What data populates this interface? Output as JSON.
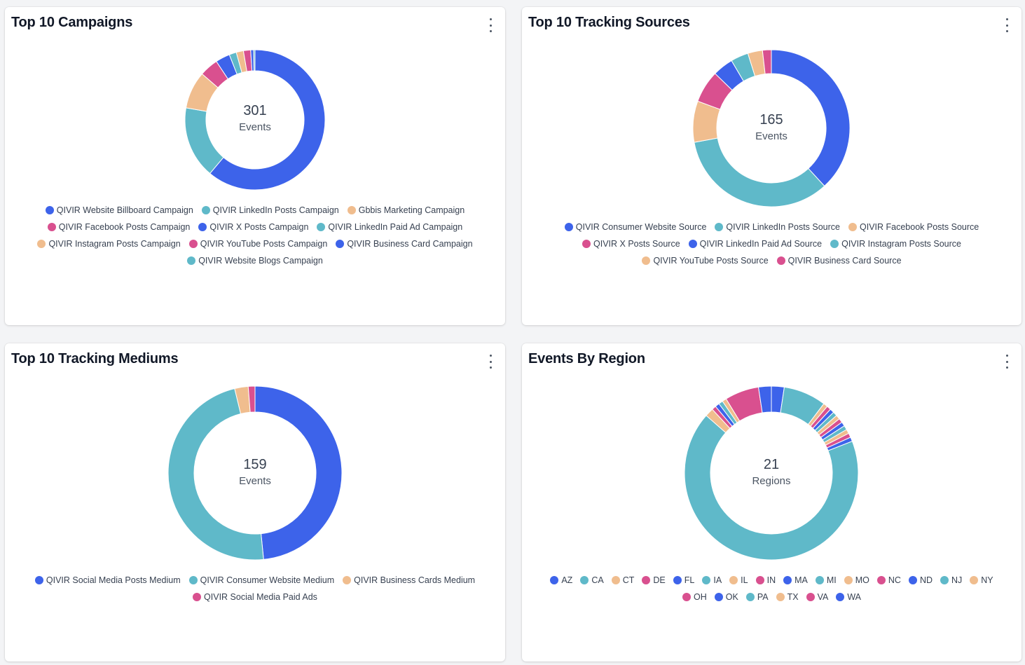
{
  "colors": {
    "blue": "#3d63ea",
    "teal": "#5fb9c9",
    "peach": "#f0bd8e",
    "pink": "#d9508f"
  },
  "cards": [
    {
      "id": "campaigns",
      "title": "Top 10 Campaigns",
      "center_value": "301",
      "center_label": "Events",
      "legend": [
        {
          "label": "QIVIR Website Billboard Campaign",
          "color": "#3d63ea"
        },
        {
          "label": "QIVIR LinkedIn Posts Campaign",
          "color": "#5fb9c9"
        },
        {
          "label": "Gbbis Marketing Campaign",
          "color": "#f0bd8e"
        },
        {
          "label": "QIVIR Facebook Posts Campaign",
          "color": "#d9508f"
        },
        {
          "label": "QIVIR X Posts Campaign",
          "color": "#3d63ea"
        },
        {
          "label": "QIVIR LinkedIn Paid Ad Campaign",
          "color": "#5fb9c9"
        },
        {
          "label": "QIVIR Instagram Posts Campaign",
          "color": "#f0bd8e"
        },
        {
          "label": "QIVIR YouTube Posts Campaign",
          "color": "#d9508f"
        },
        {
          "label": "QIVIR Business Card Campaign",
          "color": "#3d63ea"
        },
        {
          "label": "QIVIR Website Blogs Campaign",
          "color": "#5fb9c9"
        }
      ]
    },
    {
      "id": "sources",
      "title": "Top 10 Tracking Sources",
      "center_value": "165",
      "center_label": "Events",
      "legend": [
        {
          "label": "QIVIR Consumer Website Source",
          "color": "#3d63ea"
        },
        {
          "label": "QIVIR LinkedIn Posts Source",
          "color": "#5fb9c9"
        },
        {
          "label": "QIVIR Facebook Posts Source",
          "color": "#f0bd8e"
        },
        {
          "label": "QIVIR X Posts Source",
          "color": "#d9508f"
        },
        {
          "label": "QIVIR LinkedIn Paid Ad Source",
          "color": "#3d63ea"
        },
        {
          "label": "QIVIR Instagram Posts Source",
          "color": "#5fb9c9"
        },
        {
          "label": "QIVIR YouTube Posts Source",
          "color": "#f0bd8e"
        },
        {
          "label": "QIVIR Business Card Source",
          "color": "#d9508f"
        }
      ]
    },
    {
      "id": "mediums",
      "title": "Top 10 Tracking Mediums",
      "center_value": "159",
      "center_label": "Events",
      "legend": [
        {
          "label": "QIVIR Social Media Posts Medium",
          "color": "#3d63ea"
        },
        {
          "label": "QIVIR Consumer Website Medium",
          "color": "#5fb9c9"
        },
        {
          "label": "QIVIR Business Cards Medium",
          "color": "#f0bd8e"
        },
        {
          "label": "QIVIR Social Media Paid Ads",
          "color": "#d9508f"
        }
      ]
    },
    {
      "id": "regions",
      "title": "Events By Region",
      "center_value": "21",
      "center_label": "Regions",
      "legend": [
        {
          "label": "AZ",
          "color": "#3d63ea"
        },
        {
          "label": "CA",
          "color": "#5fb9c9"
        },
        {
          "label": "CT",
          "color": "#f0bd8e"
        },
        {
          "label": "DE",
          "color": "#d9508f"
        },
        {
          "label": "FL",
          "color": "#3d63ea"
        },
        {
          "label": "IA",
          "color": "#5fb9c9"
        },
        {
          "label": "IL",
          "color": "#f0bd8e"
        },
        {
          "label": "IN",
          "color": "#d9508f"
        },
        {
          "label": "MA",
          "color": "#3d63ea"
        },
        {
          "label": "MI",
          "color": "#5fb9c9"
        },
        {
          "label": "MO",
          "color": "#f0bd8e"
        },
        {
          "label": "NC",
          "color": "#d9508f"
        },
        {
          "label": "ND",
          "color": "#3d63ea"
        },
        {
          "label": "NJ",
          "color": "#5fb9c9"
        },
        {
          "label": "NY",
          "color": "#f0bd8e"
        },
        {
          "label": "OH",
          "color": "#d9508f"
        },
        {
          "label": "OK",
          "color": "#3d63ea"
        },
        {
          "label": "PA",
          "color": "#5fb9c9"
        },
        {
          "label": "TX",
          "color": "#f0bd8e"
        },
        {
          "label": "VA",
          "color": "#d9508f"
        },
        {
          "label": "WA",
          "color": "#3d63ea"
        }
      ]
    }
  ],
  "chart_data": [
    {
      "type": "pie",
      "title": "Top 10 Campaigns",
      "total": 301,
      "categories": [
        "QIVIR Website Billboard Campaign",
        "QIVIR LinkedIn Posts Campaign",
        "Gbbis Marketing Campaign",
        "QIVIR Facebook Posts Campaign",
        "QIVIR X Posts Campaign",
        "QIVIR LinkedIn Paid Ad Campaign",
        "QIVIR Instagram Posts Campaign",
        "QIVIR YouTube Posts Campaign",
        "QIVIR Business Card Campaign",
        "QIVIR Website Blogs Campaign"
      ],
      "values": [
        184,
        50,
        26,
        13,
        10,
        5,
        5,
        5,
        2,
        1
      ]
    },
    {
      "type": "pie",
      "title": "Top 10 Tracking Sources",
      "total": 165,
      "categories": [
        "QIVIR Consumer Website Source",
        "QIVIR LinkedIn Posts Source",
        "QIVIR Facebook Posts Source",
        "QIVIR X Posts Source",
        "QIVIR LinkedIn Paid Ad Source",
        "QIVIR Instagram Posts Source",
        "QIVIR YouTube Posts Source",
        "QIVIR Business Card Source"
      ],
      "values": [
        63,
        56,
        14,
        11,
        7,
        6,
        5,
        3
      ]
    },
    {
      "type": "pie",
      "title": "Top 10 Tracking Mediums",
      "total": 159,
      "categories": [
        "QIVIR Social Media Posts Medium",
        "QIVIR Consumer Website Medium",
        "QIVIR Business Cards Medium",
        "QIVIR Social Media Paid Ads"
      ],
      "values": [
        77,
        76,
        4,
        2
      ]
    },
    {
      "type": "pie",
      "title": "Events By Region",
      "total_label": "21 Regions",
      "categories": [
        "AZ",
        "NJ",
        "CT",
        "DE",
        "FL",
        "IA",
        "IL",
        "IN",
        "MA",
        "MI",
        "MO",
        "NC",
        "ND",
        "CA",
        "NY",
        "OH",
        "OK",
        "PA",
        "TX",
        "VA",
        "WA"
      ],
      "values": [
        3,
        10,
        1,
        1,
        1,
        1,
        1,
        1,
        1,
        1,
        1,
        1,
        1,
        85,
        2,
        1,
        1,
        1,
        1,
        8,
        3
      ]
    }
  ]
}
